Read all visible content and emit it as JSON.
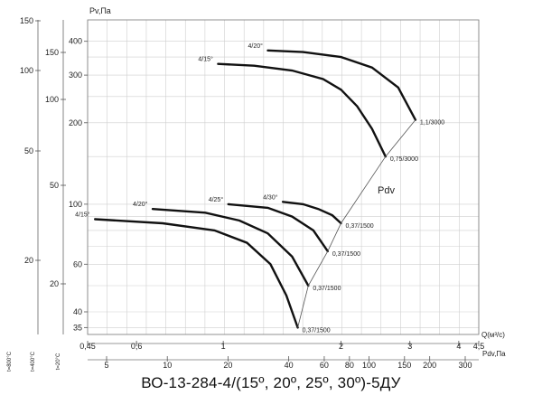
{
  "chart_data": {
    "type": "line",
    "title": "ВО-13-284-4/(15º, 20º, 25º, 30º)-5ДУ",
    "ylabel": "Pv,Па",
    "xlabel_q": "Q(м³/с)",
    "xlabel_pdv": "Pdv,Па",
    "pdv_line_label": "Pdv",
    "y_scale": "log",
    "ylim": [
      33,
      480
    ],
    "y_ticks": [
      35,
      40,
      60,
      100,
      200,
      300,
      400
    ],
    "q_scale": "log",
    "q_ticks": [
      {
        "label": "0,45",
        "value": 0.45
      },
      {
        "label": "0,6",
        "value": 0.6
      },
      {
        "label": "1",
        "value": 1
      },
      {
        "label": "2",
        "value": 2
      },
      {
        "label": "3",
        "value": 3
      },
      {
        "label": "4",
        "value": 4
      },
      {
        "label": "4,5",
        "value": 4.5
      }
    ],
    "pdv_ticks": [
      {
        "label": "5",
        "value": 5
      },
      {
        "label": "10",
        "value": 10
      },
      {
        "label": "20",
        "value": 20
      },
      {
        "label": "40",
        "value": 40
      },
      {
        "label": "60",
        "value": 60
      },
      {
        "label": "80",
        "value": 80
      },
      {
        "label": "100",
        "value": 100
      },
      {
        "label": "150",
        "value": 150
      },
      {
        "label": "200",
        "value": 200
      },
      {
        "label": "300",
        "value": 300
      }
    ],
    "temp_scales": [
      {
        "caption": "t=800°C",
        "ticks": [
          150,
          100,
          50,
          20
        ]
      },
      {
        "caption": "t=400°C",
        "ticks": [
          150,
          100,
          50,
          20
        ]
      },
      {
        "caption": "t=20°C",
        "ticks": []
      }
    ],
    "series": [
      {
        "name": "4/15°",
        "speed_label": "0,75/3000",
        "x": [
          1.7,
          1.75,
          1.78,
          1.8,
          1.82
        ],
        "y": [
          330,
          328,
          326,
          324,
          320
        ],
        "x_real": [
          0.97,
          1.2,
          1.5,
          1.8,
          2.0,
          2.2,
          2.4,
          2.6
        ],
        "y_real": [
          330,
          325,
          312,
          290,
          265,
          230,
          190,
          150
        ]
      },
      {
        "name": "4/20°",
        "speed_label": "1,1/3000",
        "x_real": [
          1.3,
          1.6,
          2.0,
          2.4,
          2.8,
          3.1
        ],
        "y_real": [
          370,
          365,
          350,
          320,
          270,
          205
        ]
      },
      {
        "name": "4/15°",
        "speed_label": "0,37/1500",
        "x_real": [
          0.47,
          0.7,
          0.95,
          1.15,
          1.32,
          1.45,
          1.55
        ],
        "y_real": [
          88,
          85,
          80,
          72,
          60,
          46,
          35
        ]
      },
      {
        "name": "4/20°",
        "speed_label": "0,37/1500",
        "x_real": [
          0.66,
          0.9,
          1.1,
          1.3,
          1.5,
          1.65
        ],
        "y_real": [
          96,
          93,
          87,
          78,
          64,
          50
        ]
      },
      {
        "name": "4/25°",
        "speed_label": "0,37/1500",
        "x_real": [
          1.03,
          1.3,
          1.5,
          1.7,
          1.85
        ],
        "y_real": [
          100,
          97,
          90,
          80,
          67
        ]
      },
      {
        "name": "4/30°",
        "speed_label": "0,37/1500",
        "x_real": [
          1.42,
          1.6,
          1.75,
          1.9,
          2.0
        ],
        "y_real": [
          102,
          100,
          96,
          91,
          85
        ]
      }
    ]
  }
}
